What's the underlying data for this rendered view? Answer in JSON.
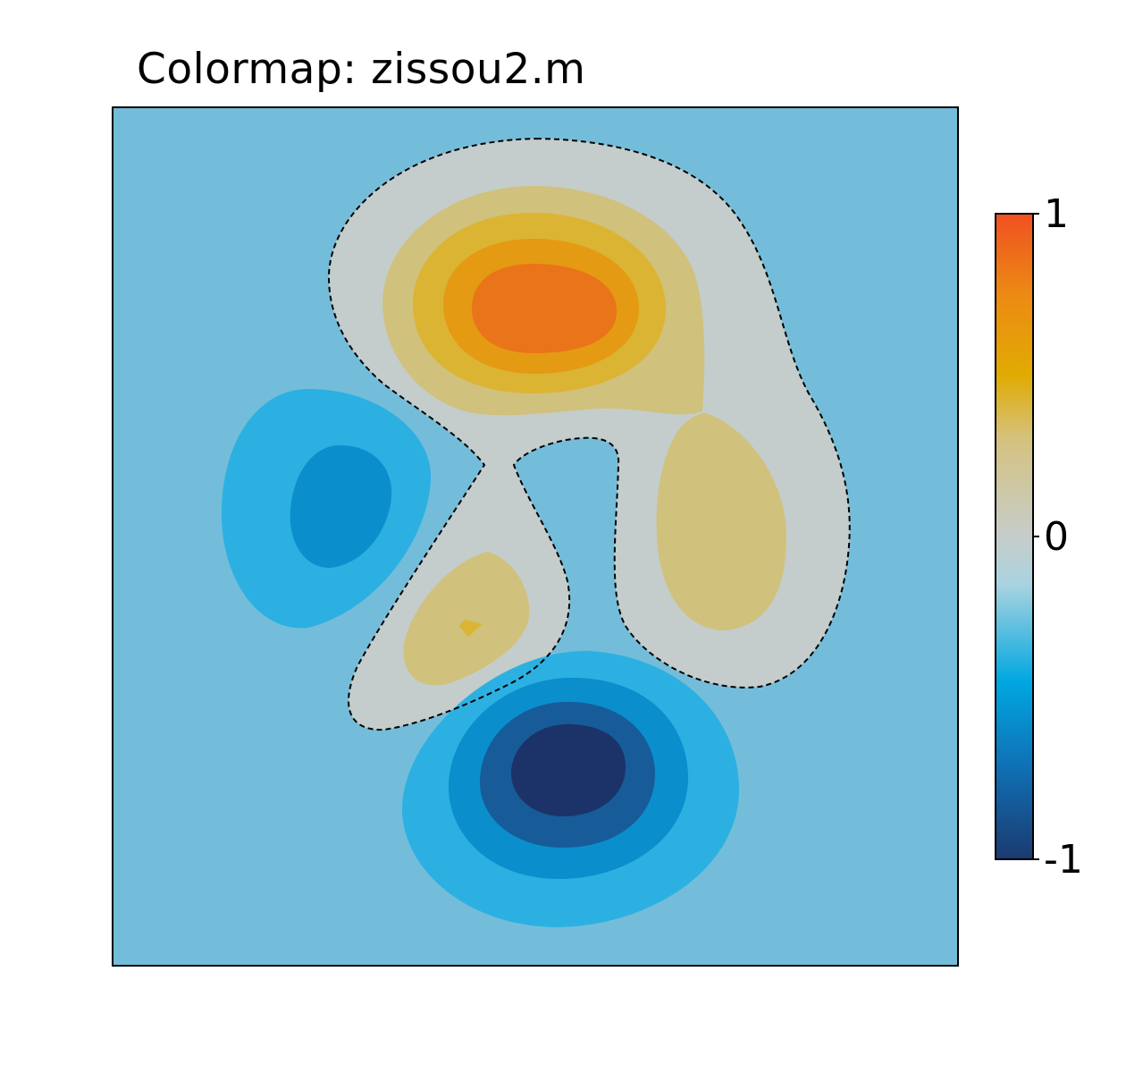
{
  "chart_data": {
    "type": "heatmap",
    "title": "Colormap: zissou2.m",
    "xlabel": "",
    "ylabel": "",
    "grid": false,
    "plot_style": "filled contours",
    "zero_contour": "dashed",
    "colorbar": {
      "position": "right",
      "vmin": -1,
      "vmax": 1,
      "tick_labels": [
        "1",
        "0",
        "-1"
      ],
      "tick_values": [
        1,
        0,
        -1
      ]
    },
    "colors": {
      "background_level": "#74bdda",
      "zero_band": "#c4cdcb",
      "colorbar_stops": [
        {
          "value": -1.0,
          "color": "#1b3a70"
        },
        {
          "value": -0.7,
          "color": "#0f73b8"
        },
        {
          "value": -0.45,
          "color": "#00a7e1"
        },
        {
          "value": -0.15,
          "color": "#a9d3e0"
        },
        {
          "value": 0.0,
          "color": "#c6cdca"
        },
        {
          "value": 0.3,
          "color": "#d5c27f"
        },
        {
          "value": 0.5,
          "color": "#e1ab03"
        },
        {
          "value": 0.75,
          "color": "#ec8a14"
        },
        {
          "value": 1.0,
          "color": "#f05021"
        }
      ]
    },
    "features": [
      {
        "kind": "positive peak",
        "location": "upper center",
        "peak_value": 0.85
      },
      {
        "kind": "positive lobe",
        "location": "right",
        "peak_value": 0.3
      },
      {
        "kind": "positive lobe",
        "location": "lower left of center",
        "peak_value": 0.4
      },
      {
        "kind": "negative trough",
        "location": "left",
        "peak_value": -0.65
      },
      {
        "kind": "negative trough",
        "location": "bottom center",
        "peak_value": -0.95
      }
    ]
  }
}
